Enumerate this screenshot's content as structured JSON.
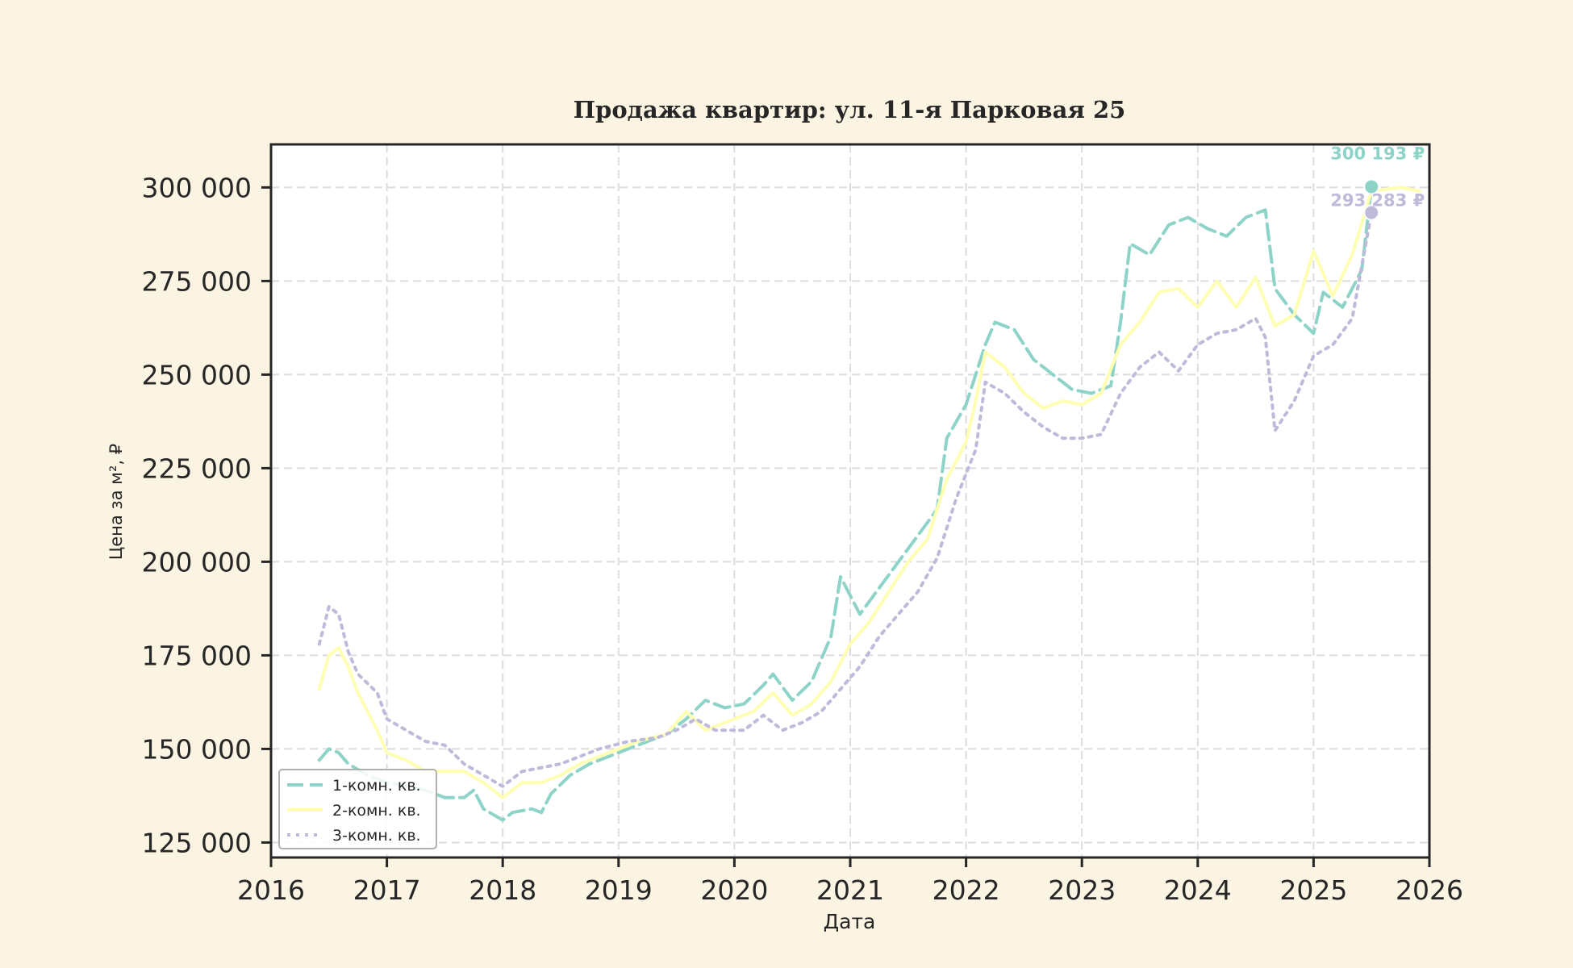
{
  "chart_data": {
    "type": "line",
    "title": "Продажа квартир: ул. 11-я Парковая 25",
    "xlabel": "Дата",
    "ylabel": "Цена за м², ₽",
    "xlim": [
      "2016-01-01",
      "2026-01-01"
    ],
    "ylim": [
      121000,
      311500
    ],
    "x_ticks": [
      "2016",
      "2017",
      "2018",
      "2019",
      "2020",
      "2021",
      "2022",
      "2023",
      "2024",
      "2025",
      "2026"
    ],
    "y_ticks": [
      125000,
      150000,
      175000,
      200000,
      225000,
      250000,
      275000,
      300000
    ],
    "y_tick_labels": [
      "125 000",
      "150 000",
      "175 000",
      "200 000",
      "225 000",
      "250 000",
      "275 000",
      "300 000"
    ],
    "grid": true,
    "legend_position": "lower-left",
    "series": [
      {
        "name": "1-комн. кв.",
        "color": "#8dd3c7",
        "dash": "dashed",
        "points": [
          [
            "2016-06",
            147000
          ],
          [
            "2016-07",
            150000
          ],
          [
            "2016-08",
            149000
          ],
          [
            "2016-09",
            146000
          ],
          [
            "2016-11",
            143000
          ],
          [
            "2017-01",
            141000
          ],
          [
            "2017-03",
            140000
          ],
          [
            "2017-05",
            139000
          ],
          [
            "2017-07",
            137000
          ],
          [
            "2017-09",
            137000
          ],
          [
            "2017-10",
            139000
          ],
          [
            "2017-11",
            134000
          ],
          [
            "2018-01",
            131000
          ],
          [
            "2018-02",
            133000
          ],
          [
            "2018-04",
            134000
          ],
          [
            "2018-05",
            133000
          ],
          [
            "2018-06",
            138000
          ],
          [
            "2018-08",
            143000
          ],
          [
            "2018-10",
            146000
          ],
          [
            "2018-12",
            148000
          ],
          [
            "2019-03",
            151000
          ],
          [
            "2019-06",
            154000
          ],
          [
            "2019-08",
            158000
          ],
          [
            "2019-10",
            163000
          ],
          [
            "2019-12",
            161000
          ],
          [
            "2020-02",
            162000
          ],
          [
            "2020-04",
            167000
          ],
          [
            "2020-05",
            170000
          ],
          [
            "2020-07",
            163000
          ],
          [
            "2020-09",
            168000
          ],
          [
            "2020-11",
            180000
          ],
          [
            "2020-12",
            196000
          ],
          [
            "2021-02",
            186000
          ],
          [
            "2021-04",
            193000
          ],
          [
            "2021-06",
            200000
          ],
          [
            "2021-08",
            207000
          ],
          [
            "2021-10",
            214000
          ],
          [
            "2021-11",
            233000
          ],
          [
            "2022-01",
            242000
          ],
          [
            "2022-03",
            258000
          ],
          [
            "2022-04",
            264000
          ],
          [
            "2022-06",
            262000
          ],
          [
            "2022-08",
            254000
          ],
          [
            "2022-10",
            250000
          ],
          [
            "2022-12",
            246000
          ],
          [
            "2023-02",
            245000
          ],
          [
            "2023-04",
            247000
          ],
          [
            "2023-05",
            264000
          ],
          [
            "2023-06",
            285000
          ],
          [
            "2023-08",
            282000
          ],
          [
            "2023-10",
            290000
          ],
          [
            "2023-12",
            292000
          ],
          [
            "2024-02",
            289000
          ],
          [
            "2024-04",
            287000
          ],
          [
            "2024-06",
            292000
          ],
          [
            "2024-08",
            294000
          ],
          [
            "2024-09",
            273000
          ],
          [
            "2024-11",
            266000
          ],
          [
            "2025-01",
            261000
          ],
          [
            "2025-02",
            272000
          ],
          [
            "2025-04",
            268000
          ],
          [
            "2025-06",
            278000
          ],
          [
            "2025-07",
            300193
          ]
        ]
      },
      {
        "name": "2-комн. кв.",
        "color": "#ffffb3",
        "dash": "solid",
        "points": [
          [
            "2016-06",
            166000
          ],
          [
            "2016-07",
            175000
          ],
          [
            "2016-08",
            177000
          ],
          [
            "2016-09",
            172000
          ],
          [
            "2016-10",
            165000
          ],
          [
            "2016-12",
            155000
          ],
          [
            "2017-01",
            149000
          ],
          [
            "2017-03",
            147000
          ],
          [
            "2017-05",
            144000
          ],
          [
            "2017-07",
            144000
          ],
          [
            "2017-09",
            144000
          ],
          [
            "2017-11",
            141000
          ],
          [
            "2018-01",
            137000
          ],
          [
            "2018-03",
            141000
          ],
          [
            "2018-05",
            141000
          ],
          [
            "2018-07",
            143000
          ],
          [
            "2018-09",
            146000
          ],
          [
            "2018-12",
            149000
          ],
          [
            "2019-03",
            152000
          ],
          [
            "2019-06",
            154000
          ],
          [
            "2019-08",
            160000
          ],
          [
            "2019-10",
            155000
          ],
          [
            "2019-12",
            157000
          ],
          [
            "2020-03",
            160000
          ],
          [
            "2020-05",
            165000
          ],
          [
            "2020-07",
            159000
          ],
          [
            "2020-09",
            162000
          ],
          [
            "2020-11",
            168000
          ],
          [
            "2021-01",
            178000
          ],
          [
            "2021-03",
            184000
          ],
          [
            "2021-05",
            192000
          ],
          [
            "2021-07",
            200000
          ],
          [
            "2021-09",
            206000
          ],
          [
            "2021-11",
            222000
          ],
          [
            "2022-01",
            232000
          ],
          [
            "2022-02",
            243000
          ],
          [
            "2022-03",
            256000
          ],
          [
            "2022-05",
            252000
          ],
          [
            "2022-07",
            245000
          ],
          [
            "2022-09",
            241000
          ],
          [
            "2022-11",
            243000
          ],
          [
            "2023-01",
            242000
          ],
          [
            "2023-03",
            245000
          ],
          [
            "2023-05",
            258000
          ],
          [
            "2023-07",
            264000
          ],
          [
            "2023-09",
            272000
          ],
          [
            "2023-11",
            273000
          ],
          [
            "2024-01",
            268000
          ],
          [
            "2024-03",
            275000
          ],
          [
            "2024-05",
            268000
          ],
          [
            "2024-07",
            276000
          ],
          [
            "2024-09",
            263000
          ],
          [
            "2024-11",
            266000
          ],
          [
            "2025-01",
            283000
          ],
          [
            "2025-03",
            271000
          ],
          [
            "2025-05",
            282000
          ],
          [
            "2025-07",
            299000
          ],
          [
            "2025-10",
            300000
          ],
          [
            "2025-12",
            299000
          ]
        ]
      },
      {
        "name": "3-комн. кв.",
        "color": "#bebada",
        "dash": "dotted",
        "points": [
          [
            "2016-06",
            178000
          ],
          [
            "2016-07",
            188000
          ],
          [
            "2016-08",
            186000
          ],
          [
            "2016-09",
            176000
          ],
          [
            "2016-10",
            170000
          ],
          [
            "2016-12",
            165000
          ],
          [
            "2017-01",
            158000
          ],
          [
            "2017-03",
            155000
          ],
          [
            "2017-05",
            152000
          ],
          [
            "2017-07",
            151000
          ],
          [
            "2017-09",
            146000
          ],
          [
            "2017-11",
            143000
          ],
          [
            "2018-01",
            140000
          ],
          [
            "2018-03",
            144000
          ],
          [
            "2018-05",
            145000
          ],
          [
            "2018-07",
            146000
          ],
          [
            "2018-09",
            148000
          ],
          [
            "2018-11",
            150000
          ],
          [
            "2019-02",
            152000
          ],
          [
            "2019-05",
            153000
          ],
          [
            "2019-07",
            155000
          ],
          [
            "2019-09",
            158000
          ],
          [
            "2019-11",
            155000
          ],
          [
            "2020-02",
            155000
          ],
          [
            "2020-04",
            159000
          ],
          [
            "2020-06",
            155000
          ],
          [
            "2020-08",
            157000
          ],
          [
            "2020-10",
            160000
          ],
          [
            "2020-12",
            166000
          ],
          [
            "2021-02",
            172000
          ],
          [
            "2021-04",
            180000
          ],
          [
            "2021-06",
            186000
          ],
          [
            "2021-08",
            192000
          ],
          [
            "2021-10",
            201000
          ],
          [
            "2021-12",
            217000
          ],
          [
            "2022-02",
            230000
          ],
          [
            "2022-03",
            248000
          ],
          [
            "2022-05",
            245000
          ],
          [
            "2022-07",
            240000
          ],
          [
            "2022-09",
            236000
          ],
          [
            "2022-11",
            233000
          ],
          [
            "2023-01",
            233000
          ],
          [
            "2023-03",
            234000
          ],
          [
            "2023-05",
            245000
          ],
          [
            "2023-07",
            252000
          ],
          [
            "2023-09",
            256000
          ],
          [
            "2023-11",
            251000
          ],
          [
            "2024-01",
            258000
          ],
          [
            "2024-03",
            261000
          ],
          [
            "2024-05",
            262000
          ],
          [
            "2024-07",
            265000
          ],
          [
            "2024-08",
            260000
          ],
          [
            "2024-09",
            235000
          ],
          [
            "2024-11",
            243000
          ],
          [
            "2025-01",
            255000
          ],
          [
            "2025-03",
            258000
          ],
          [
            "2025-05",
            265000
          ],
          [
            "2025-07",
            293283
          ]
        ]
      }
    ],
    "annotations": [
      {
        "text": "300 193 ₽",
        "x": "2025-07",
        "y": 300193,
        "color": "#8dd3c7"
      },
      {
        "text": "293 283 ₽",
        "x": "2025-07",
        "y": 293283,
        "color": "#bebada"
      }
    ]
  }
}
